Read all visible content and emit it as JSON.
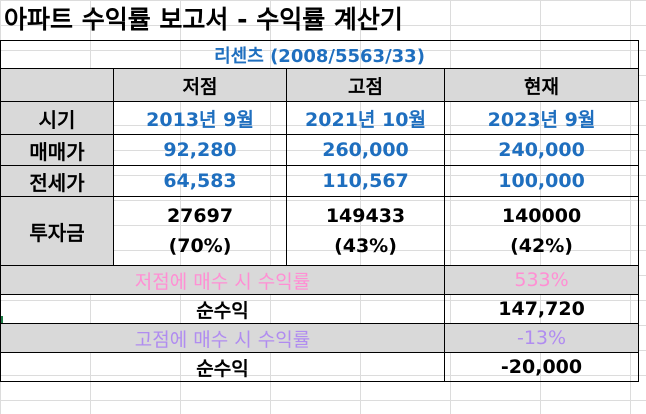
{
  "title": "아파트 수익률 보고서 - 수익률 계산기",
  "apartment": "리센츠 (2008/5563/33)",
  "columns": [
    "저점",
    "고점",
    "현재"
  ],
  "rows": {
    "period": {
      "label": "시기",
      "values": [
        "2013년 9월",
        "2021년 10월",
        "2023년 9월"
      ]
    },
    "sale": {
      "label": "매매가",
      "values": [
        "92,280",
        "260,000",
        "240,000"
      ]
    },
    "jeonse": {
      "label": "전세가",
      "values": [
        "64,583",
        "110,567",
        "100,000"
      ]
    },
    "investment": {
      "label": "투자금",
      "values": [
        {
          "amount": "27697",
          "ratio": "(70%)"
        },
        {
          "amount": "149433",
          "ratio": "(43%)"
        },
        {
          "amount": "140000",
          "ratio": "(42%)"
        }
      ]
    }
  },
  "low_buy": {
    "label": "저점에 매수 시 수익률",
    "rate": "533%",
    "net_label": "순수익",
    "net_value": "147,720"
  },
  "high_buy": {
    "label": "고점에 매수 시 수익률",
    "rate": "-13%",
    "net_label": "순수익",
    "net_value": "-20,000"
  },
  "colors": {
    "blue_text": "#1f6fbf",
    "pink_text": "#ff8fd4",
    "lavender_text": "#b08cf0",
    "header_fill": "#d9d9d9"
  }
}
